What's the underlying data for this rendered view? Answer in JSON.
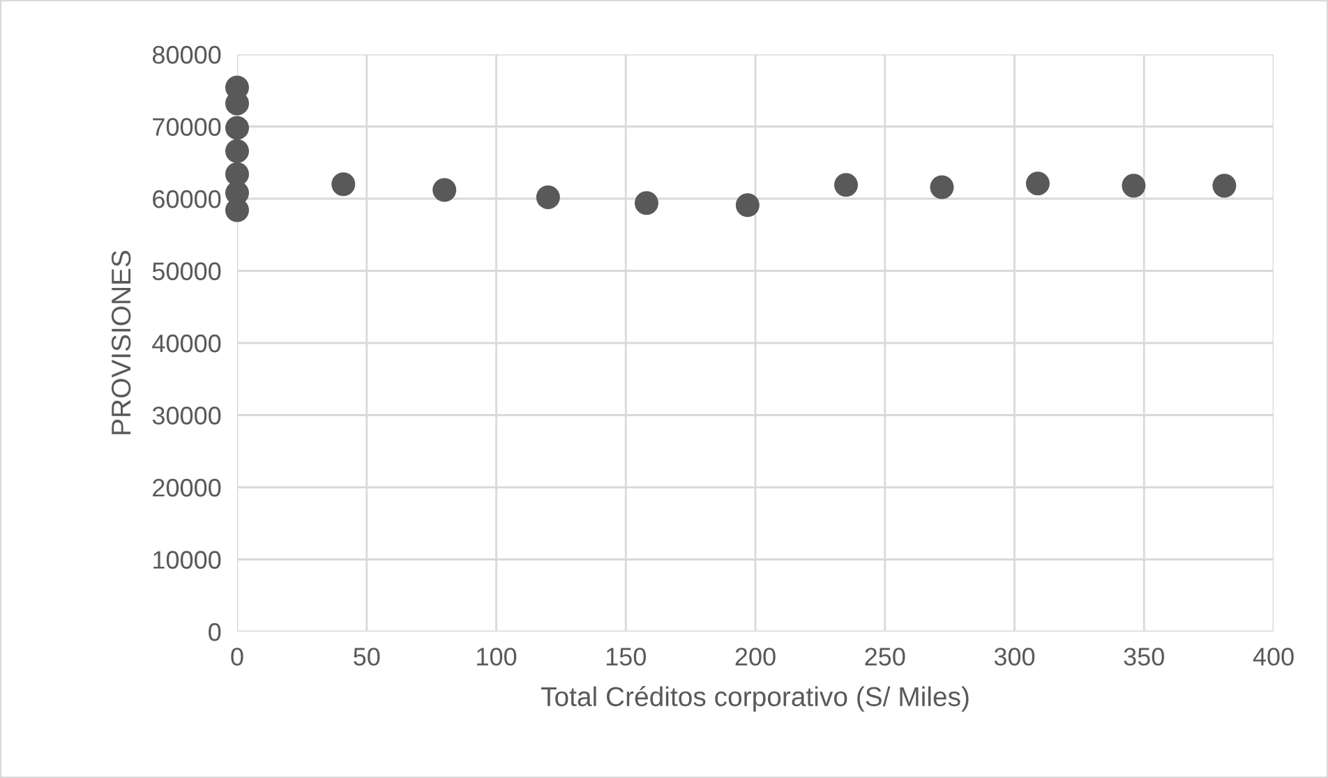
{
  "chart_data": {
    "type": "scatter",
    "xlabel": "Total Créditos corporativo (S/ Miles)",
    "ylabel": "PROVISIONES",
    "x": [
      0,
      0,
      0,
      0,
      0,
      0,
      0,
      41,
      80,
      120,
      158,
      197,
      235,
      272,
      309,
      346,
      381
    ],
    "values": [
      75400,
      73200,
      69800,
      66600,
      63400,
      60800,
      58400,
      62000,
      61200,
      60200,
      59400,
      59100,
      61900,
      61600,
      62100,
      61800,
      61800
    ],
    "color": "#595959",
    "marker": "circle",
    "xlim": [
      0,
      400
    ],
    "xticks": [
      0,
      50,
      100,
      150,
      200,
      250,
      300,
      350,
      400
    ],
    "ylim": [
      0,
      80000
    ],
    "yticks": [
      0,
      10000,
      20000,
      30000,
      40000,
      50000,
      60000,
      70000,
      80000
    ],
    "grid": true,
    "legend": false
  }
}
